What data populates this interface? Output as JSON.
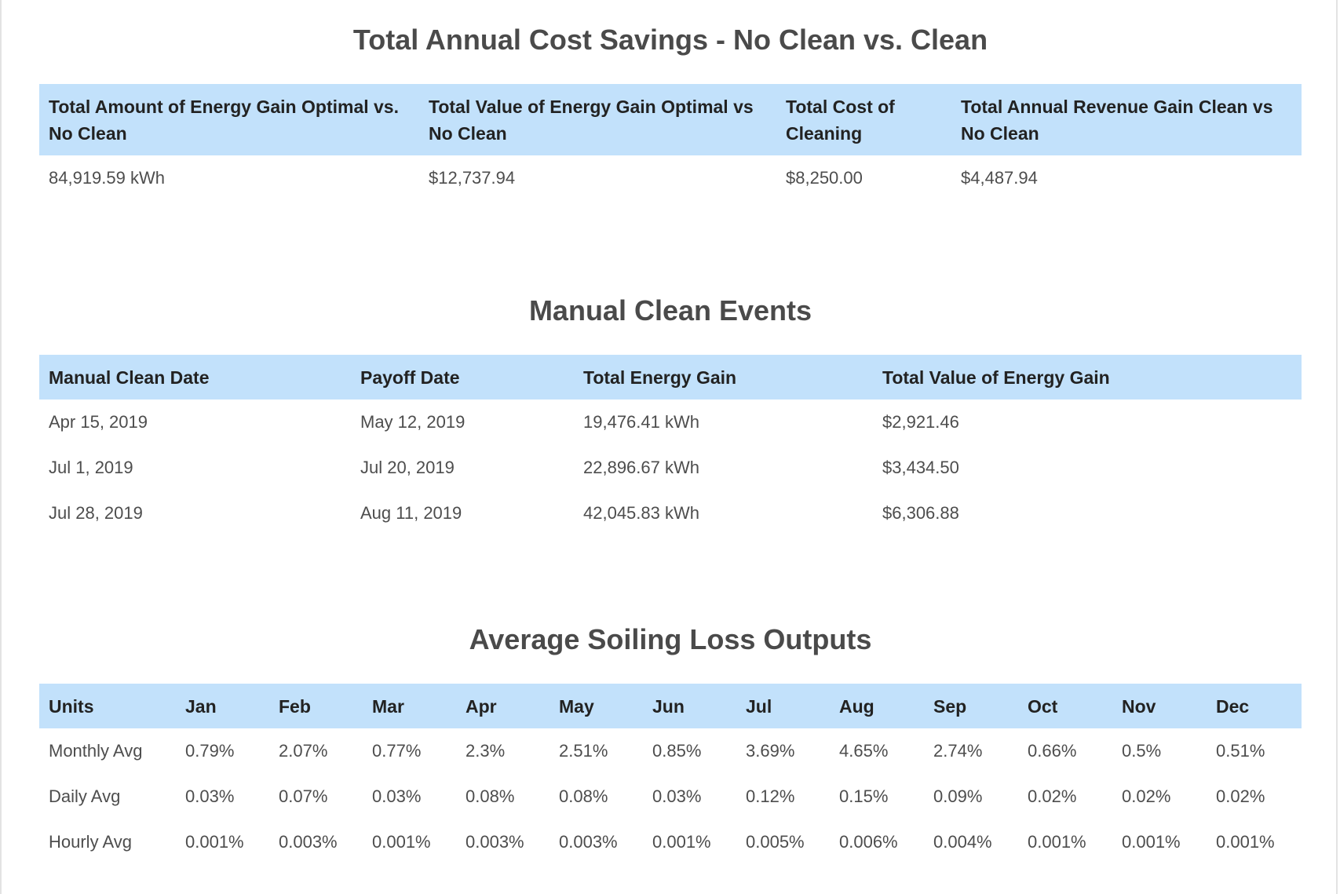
{
  "cost_savings": {
    "title": "Total Annual Cost Savings - No Clean vs. Clean",
    "headers": [
      "Total Amount of Energy Gain Optimal vs. No Clean",
      "Total Value of Energy Gain Optimal vs No Clean",
      "Total Cost of Cleaning",
      "Total Annual Revenue Gain Clean vs No Clean"
    ],
    "row": [
      "84,919.59 kWh",
      "$12,737.94",
      "$8,250.00",
      "$4,487.94"
    ]
  },
  "clean_events": {
    "title": "Manual Clean Events",
    "headers": [
      "Manual Clean Date",
      "Payoff Date",
      "Total Energy Gain",
      "Total Value of Energy Gain"
    ],
    "rows": [
      [
        "Apr 15, 2019",
        "May 12, 2019",
        "19,476.41 kWh",
        "$2,921.46"
      ],
      [
        "Jul 1, 2019",
        "Jul 20, 2019",
        "22,896.67 kWh",
        "$3,434.50"
      ],
      [
        "Jul 28, 2019",
        "Aug 11, 2019",
        "42,045.83 kWh",
        "$6,306.88"
      ]
    ]
  },
  "soiling_loss": {
    "title": "Average Soiling Loss Outputs",
    "headers": [
      "Units",
      "Jan",
      "Feb",
      "Mar",
      "Apr",
      "May",
      "Jun",
      "Jul",
      "Aug",
      "Sep",
      "Oct",
      "Nov",
      "Dec"
    ],
    "rows": [
      [
        "Monthly Avg",
        "0.79%",
        "2.07%",
        "0.77%",
        "2.3%",
        "2.51%",
        "0.85%",
        "3.69%",
        "4.65%",
        "2.74%",
        "0.66%",
        "0.5%",
        "0.51%"
      ],
      [
        "Daily Avg",
        "0.03%",
        "0.07%",
        "0.03%",
        "0.08%",
        "0.08%",
        "0.03%",
        "0.12%",
        "0.15%",
        "0.09%",
        "0.02%",
        "0.02%",
        "0.02%"
      ],
      [
        "Hourly Avg",
        "0.001%",
        "0.003%",
        "0.001%",
        "0.003%",
        "0.003%",
        "0.001%",
        "0.005%",
        "0.006%",
        "0.004%",
        "0.001%",
        "0.001%",
        "0.001%"
      ]
    ]
  },
  "colors": {
    "header_bg": "#c2e1fb",
    "title_text": "#4a4a4a",
    "header_text": "#222222",
    "cell_text": "#4d4d4d"
  }
}
